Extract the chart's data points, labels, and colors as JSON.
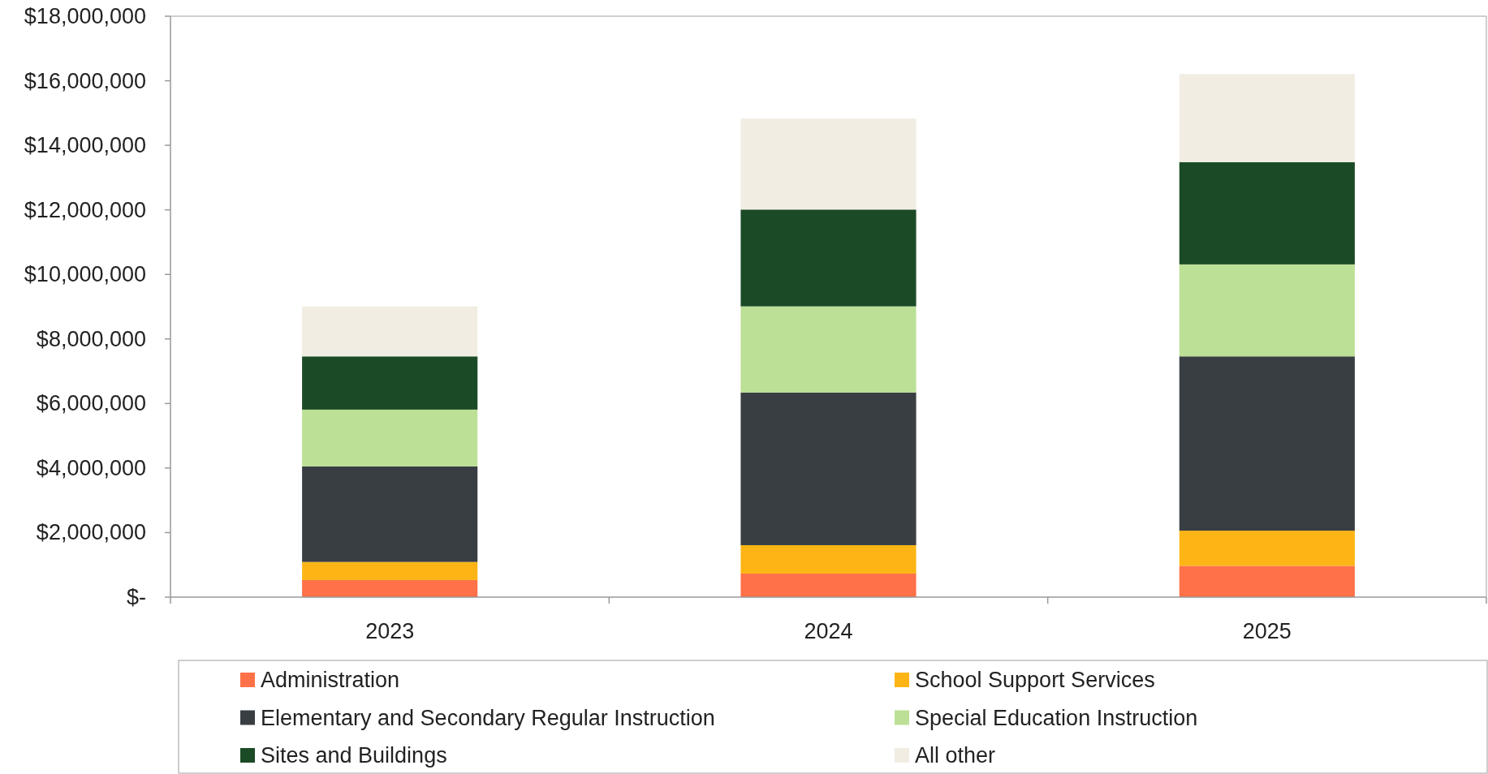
{
  "chart_data": {
    "type": "bar",
    "stacked": true,
    "categories": [
      "2023",
      "2024",
      "2025"
    ],
    "series": [
      {
        "name": "Administration",
        "color": "#ff7148",
        "values": [
          530000,
          730000,
          970000
        ]
      },
      {
        "name": "School Support Services",
        "color": "#fdb515",
        "values": [
          560000,
          880000,
          1090000
        ]
      },
      {
        "name": "Elementary and Secondary Regular Instruction",
        "color": "#393e43",
        "values": [
          2960000,
          4730000,
          5400000
        ]
      },
      {
        "name": "Special Education Instruction",
        "color": "#bce096",
        "values": [
          1760000,
          2670000,
          2850000
        ]
      },
      {
        "name": "Sites and Buildings",
        "color": "#1b4b26",
        "values": [
          1650000,
          3000000,
          3170000
        ]
      },
      {
        "name": "All other",
        "color": "#f2ede3",
        "values": [
          1550000,
          2820000,
          2730000
        ]
      }
    ],
    "ylim": [
      0,
      18000000
    ],
    "yticks": [
      {
        "value": 0,
        "label": "$-"
      },
      {
        "value": 2000000,
        "label": "$2,000,000"
      },
      {
        "value": 4000000,
        "label": "$4,000,000"
      },
      {
        "value": 6000000,
        "label": "$6,000,000"
      },
      {
        "value": 8000000,
        "label": "$8,000,000"
      },
      {
        "value": 10000000,
        "label": "$10,000,000"
      },
      {
        "value": 12000000,
        "label": "$12,000,000"
      },
      {
        "value": 14000000,
        "label": "$14,000,000"
      },
      {
        "value": 16000000,
        "label": "$16,000,000"
      },
      {
        "value": 18000000,
        "label": "$18,000,000"
      }
    ],
    "legend": "bottom",
    "grid": false
  }
}
